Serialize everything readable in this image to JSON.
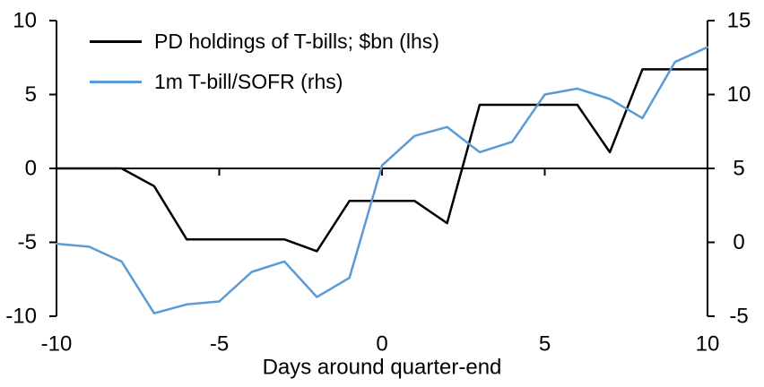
{
  "chart_data": {
    "type": "line",
    "title": "",
    "xlabel": "Days around quarter-end",
    "ylabel_left": "",
    "ylabel_right": "",
    "grid": false,
    "legend_position": "top-left",
    "xlim": [
      -10,
      10
    ],
    "x_ticks": [
      -10,
      -5,
      0,
      5,
      10
    ],
    "axes": {
      "left": {
        "range": [
          -10,
          10
        ],
        "ticks": [
          10,
          5,
          0,
          -5,
          -10
        ]
      },
      "right": {
        "range": [
          -5,
          15
        ],
        "ticks": [
          15,
          10,
          5,
          0,
          -5
        ]
      }
    },
    "x": [
      -10,
      -9,
      -8,
      -7,
      -6,
      -5,
      -4,
      -3,
      -2,
      -1,
      0,
      1,
      2,
      3,
      4,
      5,
      6,
      7,
      8,
      9,
      10
    ],
    "series": [
      {
        "name": "PD holdings of T-bills; $bn (lhs)",
        "axis": "left",
        "color": "#000000",
        "values": [
          0,
          0,
          0,
          -1.2,
          -4.8,
          -4.8,
          -4.8,
          -4.8,
          -5.6,
          -2.2,
          -2.2,
          -2.2,
          -3.7,
          4.3,
          4.3,
          4.3,
          4.3,
          1.1,
          6.7,
          6.7,
          6.7
        ]
      },
      {
        "name": "1m T-bill/SOFR (rhs)",
        "axis": "right",
        "color": "#5B9BD5",
        "values": [
          -0.1,
          -0.3,
          -1.3,
          -4.8,
          -4.2,
          -4.0,
          -2.0,
          -1.3,
          -3.7,
          -2.4,
          5.2,
          7.2,
          7.8,
          6.1,
          6.8,
          10.0,
          10.4,
          9.7,
          8.4,
          12.2,
          13.2
        ]
      }
    ],
    "colors": {
      "axis": "#000000",
      "text": "#000000",
      "background": "#ffffff"
    }
  }
}
